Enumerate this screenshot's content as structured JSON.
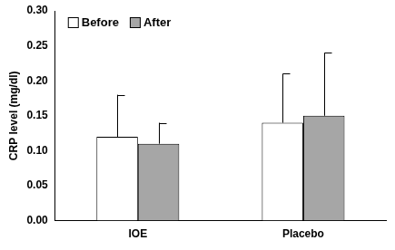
{
  "chart_data": {
    "type": "bar",
    "y_label": "CRP level (mg/dl)",
    "categories": [
      "IOE",
      "Placebo"
    ],
    "series": [
      {
        "name": "Before",
        "color": "#ffffff",
        "values": [
          0.12,
          0.14
        ],
        "errors": [
          0.06,
          0.07
        ]
      },
      {
        "name": "After",
        "color": "#a6a6a6",
        "values": [
          0.11,
          0.15
        ],
        "errors": [
          0.03,
          0.09
        ]
      }
    ],
    "ylim": [
      0,
      0.3
    ],
    "yticks": [
      {
        "value": 0,
        "label": "0.00"
      },
      {
        "value": 0.05,
        "label": "0.05"
      },
      {
        "value": 0.1,
        "label": "0.10"
      },
      {
        "value": 0.15,
        "label": "0.15"
      },
      {
        "value": 0.2,
        "label": "0.20"
      },
      {
        "value": 0.25,
        "label": "0.25"
      },
      {
        "value": 0.3,
        "label": "0.30"
      }
    ],
    "grid": false,
    "legend": "upper left"
  }
}
